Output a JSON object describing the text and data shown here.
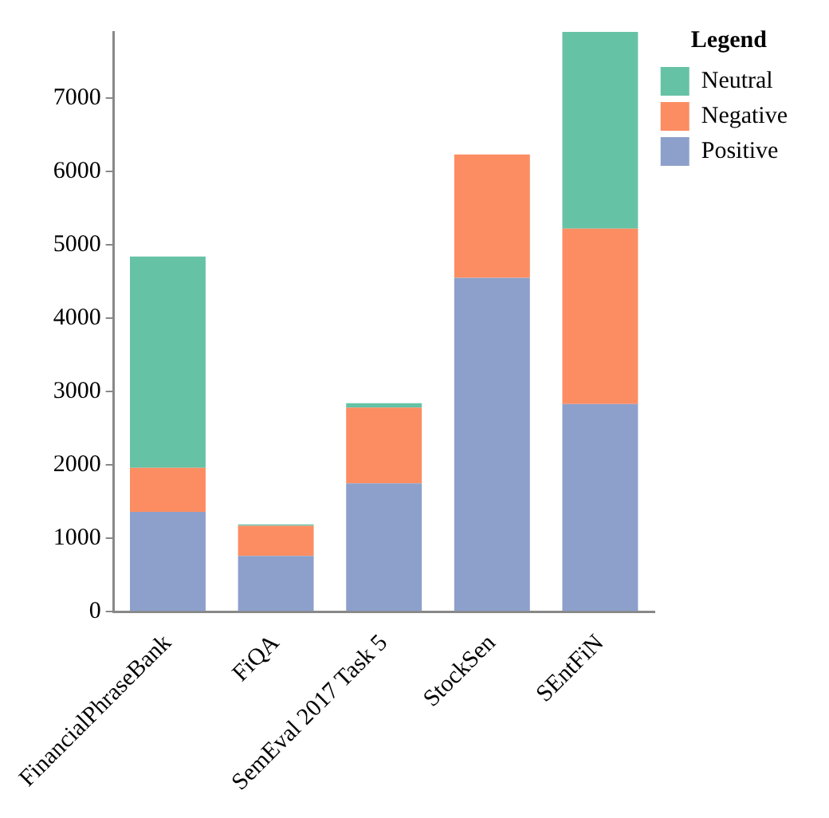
{
  "chart_data": {
    "type": "bar",
    "stacked": true,
    "legend_title": "Legend",
    "legend": "right",
    "categories": [
      "FinancialPhraseBank",
      "FiQA",
      "SemEval 2017 Task 5",
      "StockSen",
      "SEntFiN"
    ],
    "series": [
      {
        "name": "Positive",
        "color": "#8da0cb",
        "values": [
          1360,
          760,
          1750,
          4550,
          2830
        ]
      },
      {
        "name": "Negative",
        "color": "#fc8d62",
        "values": [
          600,
          410,
          1030,
          1680,
          2390
        ]
      },
      {
        "name": "Neutral",
        "color": "#66c2a5",
        "values": [
          2880,
          20,
          60,
          0,
          2680
        ]
      }
    ],
    "ylim": [
      0,
      7900
    ],
    "yticks": [
      0,
      1000,
      2000,
      3000,
      4000,
      5000,
      6000,
      7000
    ],
    "grid": false
  }
}
